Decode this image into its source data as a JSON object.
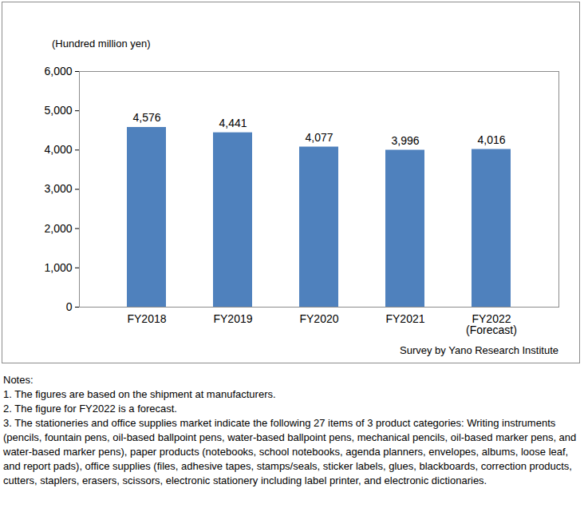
{
  "chart_data": {
    "type": "bar",
    "y_label": "(Hundred million yen)",
    "categories": [
      "FY2018",
      "FY2019",
      "FY2020",
      "FY2021",
      "FY2022\n(Forecast)"
    ],
    "values": [
      4576,
      4441,
      4077,
      3996,
      4016
    ],
    "value_labels": [
      "4,576",
      "4,441",
      "4,077",
      "3,996",
      "4,016"
    ],
    "color": "#4f81bd",
    "ylim": [
      0,
      6000
    ],
    "yticks": [
      0,
      {
        "value": 1000,
        "label": "1,000"
      },
      {
        "value": 2000,
        "label": "2,000"
      },
      {
        "value": 3000,
        "label": "3,000"
      },
      {
        "value": 4000,
        "label": "4,000"
      },
      {
        "value": 5000,
        "label": "5,000"
      },
      {
        "value": 6000,
        "label": "6,000"
      }
    ],
    "grid": false,
    "data_labels": true,
    "source": "Survey by Yano Research Institute",
    "notes": [
      "Notes:",
      "1. The figures are based on the shipment at manufacturers.",
      "2. The figure for FY2022 is a forecast.",
      "3. The stationeries and office supplies market indicate the following 27 items of 3 product categories: Writing instruments (pencils, fountain pens, oil-based ballpoint pens, water-based ballpoint pens, mechanical pencils, oil-based marker pens, and water-based marker pens), paper products (notebooks, school notebooks, agenda planners, envelopes, albums, loose leaf, and report pads), office supplies (files, adhesive tapes, stamps/seals, sticker labels, glues, blackboards, correction products, cutters, staplers, erasers, scissors, electronic stationery including label printer, and electronic dictionaries."
    ]
  }
}
